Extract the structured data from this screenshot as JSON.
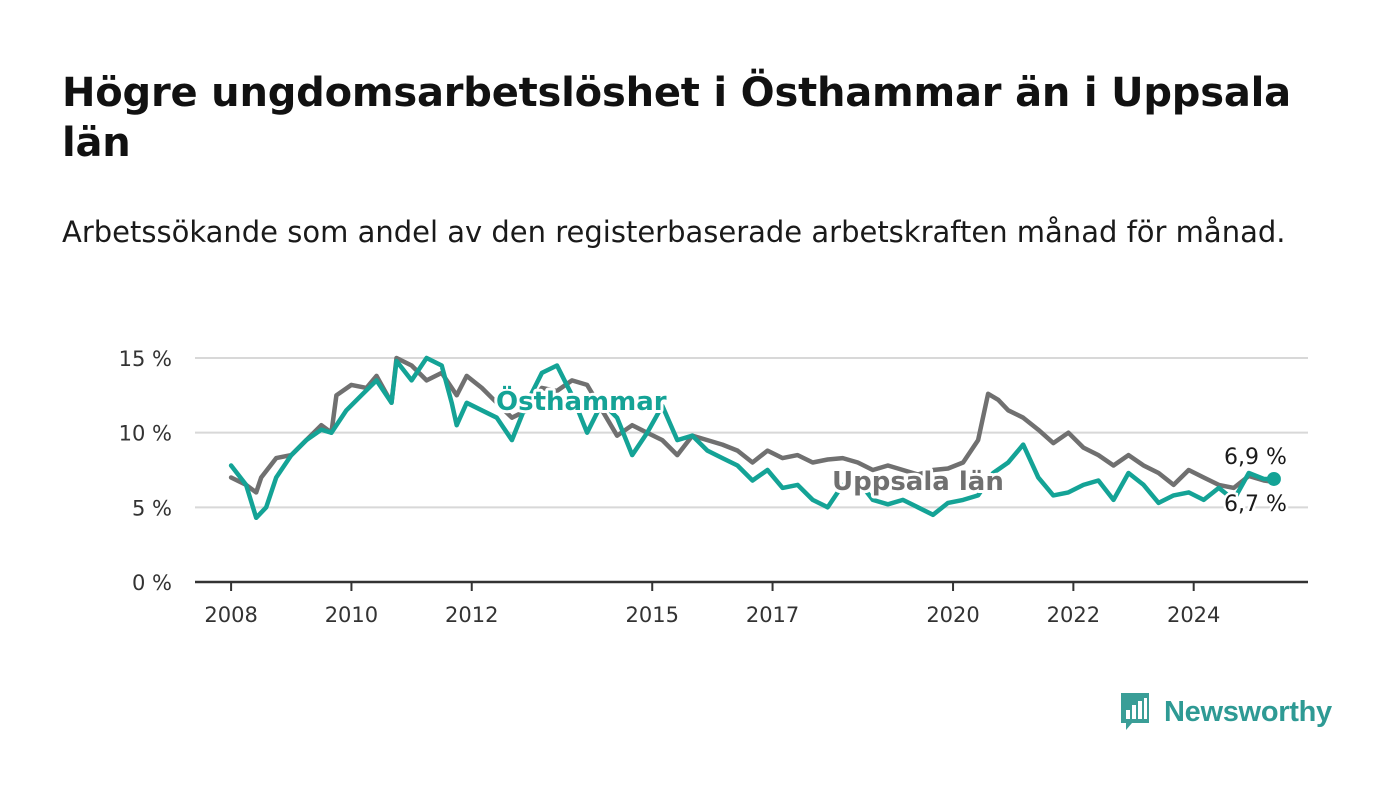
{
  "title": "Högre ungdomsarbetslöshet i Östhammar än i Uppsala län",
  "subtitle": "Arbetssökande som andel av den registerbaserade arbetskraften månad för månad.",
  "logo": {
    "text": "Newsworthy",
    "icon": "bar-chart-speech-bubble-icon",
    "color": "#3a9e97"
  },
  "colors": {
    "osthammar": "#14a396",
    "uppsala": "#707070",
    "grid": "#d8d8d8",
    "axis": "#333333",
    "text": "#1a1a1a"
  },
  "chart_data": {
    "type": "line",
    "title": "Högre ungdomsarbetslöshet i Östhammar än i Uppsala län",
    "subtitle": "Arbetssökande som andel av den registerbaserade arbetskraften månad för månad.",
    "xlabel": "",
    "ylabel": "",
    "xlim": [
      "2008-01",
      "2025-06"
    ],
    "ylim": [
      0,
      15
    ],
    "y_ticks": [
      "0 %",
      "5 %",
      "10 %",
      "15 %"
    ],
    "y_tick_values": [
      0,
      5,
      10,
      15
    ],
    "x_ticks": [
      "2008",
      "2010",
      "2012",
      "2015",
      "2017",
      "2020",
      "2022",
      "2024"
    ],
    "grid": true,
    "legend": "direct labels on lines",
    "series": [
      {
        "name": "Uppsala län",
        "color": "#707070",
        "points": [
          [
            "2008-01",
            7.0
          ],
          [
            "2008-04",
            6.5
          ],
          [
            "2008-06",
            6.0
          ],
          [
            "2008-07",
            7.0
          ],
          [
            "2008-10",
            8.3
          ],
          [
            "2009-01",
            8.5
          ],
          [
            "2009-04",
            9.5
          ],
          [
            "2009-07",
            10.5
          ],
          [
            "2009-09",
            10.0
          ],
          [
            "2009-10",
            12.5
          ],
          [
            "2010-01",
            13.2
          ],
          [
            "2010-04",
            13.0
          ],
          [
            "2010-06",
            13.8
          ],
          [
            "2010-09",
            12.0
          ],
          [
            "2010-10",
            15.0
          ],
          [
            "2011-01",
            14.5
          ],
          [
            "2011-04",
            13.5
          ],
          [
            "2011-07",
            14.0
          ],
          [
            "2011-10",
            12.5
          ],
          [
            "2011-12",
            13.8
          ],
          [
            "2012-03",
            13.0
          ],
          [
            "2012-06",
            12.0
          ],
          [
            "2012-09",
            11.0
          ],
          [
            "2012-12",
            11.5
          ],
          [
            "2013-03",
            13.0
          ],
          [
            "2013-06",
            12.8
          ],
          [
            "2013-09",
            13.5
          ],
          [
            "2013-12",
            13.2
          ],
          [
            "2014-03",
            11.5
          ],
          [
            "2014-06",
            9.8
          ],
          [
            "2014-09",
            10.5
          ],
          [
            "2014-12",
            10.0
          ],
          [
            "2015-03",
            9.5
          ],
          [
            "2015-06",
            8.5
          ],
          [
            "2015-09",
            9.8
          ],
          [
            "2015-12",
            9.5
          ],
          [
            "2016-03",
            9.2
          ],
          [
            "2016-06",
            8.8
          ],
          [
            "2016-09",
            8.0
          ],
          [
            "2016-12",
            8.8
          ],
          [
            "2017-03",
            8.3
          ],
          [
            "2017-06",
            8.5
          ],
          [
            "2017-09",
            8.0
          ],
          [
            "2017-12",
            8.2
          ],
          [
            "2018-03",
            8.3
          ],
          [
            "2018-06",
            8.0
          ],
          [
            "2018-09",
            7.5
          ],
          [
            "2018-12",
            7.8
          ],
          [
            "2019-03",
            7.5
          ],
          [
            "2019-06",
            7.2
          ],
          [
            "2019-09",
            7.5
          ],
          [
            "2019-12",
            7.6
          ],
          [
            "2020-03",
            8.0
          ],
          [
            "2020-06",
            9.5
          ],
          [
            "2020-08",
            12.6
          ],
          [
            "2020-10",
            12.2
          ],
          [
            "2020-12",
            11.5
          ],
          [
            "2021-03",
            11.0
          ],
          [
            "2021-06",
            10.2
          ],
          [
            "2021-09",
            9.3
          ],
          [
            "2021-12",
            10.0
          ],
          [
            "2022-03",
            9.0
          ],
          [
            "2022-06",
            8.5
          ],
          [
            "2022-09",
            7.8
          ],
          [
            "2022-12",
            8.5
          ],
          [
            "2023-03",
            7.8
          ],
          [
            "2023-06",
            7.3
          ],
          [
            "2023-09",
            6.5
          ],
          [
            "2023-12",
            7.5
          ],
          [
            "2024-03",
            7.0
          ],
          [
            "2024-06",
            6.5
          ],
          [
            "2024-09",
            6.3
          ],
          [
            "2024-12",
            7.1
          ],
          [
            "2025-03",
            6.8
          ],
          [
            "2025-05",
            6.7
          ]
        ],
        "last_label": "6,7 %"
      },
      {
        "name": "Östhammar",
        "color": "#14a396",
        "points": [
          [
            "2008-01",
            7.8
          ],
          [
            "2008-04",
            6.5
          ],
          [
            "2008-06",
            4.3
          ],
          [
            "2008-08",
            5.0
          ],
          [
            "2008-10",
            7.0
          ],
          [
            "2009-01",
            8.5
          ],
          [
            "2009-04",
            9.5
          ],
          [
            "2009-07",
            10.2
          ],
          [
            "2009-09",
            10.0
          ],
          [
            "2009-12",
            11.5
          ],
          [
            "2010-03",
            12.5
          ],
          [
            "2010-06",
            13.5
          ],
          [
            "2010-09",
            12.0
          ],
          [
            "2010-10",
            14.8
          ],
          [
            "2011-01",
            13.5
          ],
          [
            "2011-04",
            15.0
          ],
          [
            "2011-07",
            14.5
          ],
          [
            "2011-09",
            12.0
          ],
          [
            "2011-10",
            10.5
          ],
          [
            "2011-12",
            12.0
          ],
          [
            "2012-03",
            11.5
          ],
          [
            "2012-06",
            11.0
          ],
          [
            "2012-09",
            9.5
          ],
          [
            "2012-12",
            12.0
          ],
          [
            "2013-03",
            14.0
          ],
          [
            "2013-06",
            14.5
          ],
          [
            "2013-09",
            12.5
          ],
          [
            "2013-12",
            10.0
          ],
          [
            "2014-03",
            12.0
          ],
          [
            "2014-06",
            11.0
          ],
          [
            "2014-09",
            8.5
          ],
          [
            "2014-12",
            10.0
          ],
          [
            "2015-03",
            11.8
          ],
          [
            "2015-06",
            9.5
          ],
          [
            "2015-09",
            9.8
          ],
          [
            "2015-12",
            8.8
          ],
          [
            "2016-03",
            8.3
          ],
          [
            "2016-06",
            7.8
          ],
          [
            "2016-09",
            6.8
          ],
          [
            "2016-12",
            7.5
          ],
          [
            "2017-03",
            6.3
          ],
          [
            "2017-06",
            6.5
          ],
          [
            "2017-09",
            5.5
          ],
          [
            "2017-12",
            5.0
          ],
          [
            "2018-03",
            6.5
          ],
          [
            "2018-06",
            6.8
          ],
          [
            "2018-09",
            5.5
          ],
          [
            "2018-12",
            5.2
          ],
          [
            "2019-03",
            5.5
          ],
          [
            "2019-06",
            5.0
          ],
          [
            "2019-09",
            4.5
          ],
          [
            "2019-12",
            5.3
          ],
          [
            "2020-03",
            5.5
          ],
          [
            "2020-06",
            5.8
          ],
          [
            "2020-09",
            7.3
          ],
          [
            "2020-12",
            8.0
          ],
          [
            "2021-03",
            9.2
          ],
          [
            "2021-06",
            7.0
          ],
          [
            "2021-09",
            5.8
          ],
          [
            "2021-12",
            6.0
          ],
          [
            "2022-03",
            6.5
          ],
          [
            "2022-06",
            6.8
          ],
          [
            "2022-09",
            5.5
          ],
          [
            "2022-12",
            7.3
          ],
          [
            "2023-03",
            6.5
          ],
          [
            "2023-06",
            5.3
          ],
          [
            "2023-09",
            5.8
          ],
          [
            "2023-12",
            6.0
          ],
          [
            "2024-03",
            5.5
          ],
          [
            "2024-06",
            6.3
          ],
          [
            "2024-09",
            5.5
          ],
          [
            "2024-12",
            7.3
          ],
          [
            "2025-03",
            6.9
          ],
          [
            "2025-05",
            6.9
          ]
        ],
        "last_label": "6,9 %"
      }
    ],
    "line_labels": {
      "osthammar": "Östhammar",
      "uppsala": "Uppsala län"
    }
  }
}
